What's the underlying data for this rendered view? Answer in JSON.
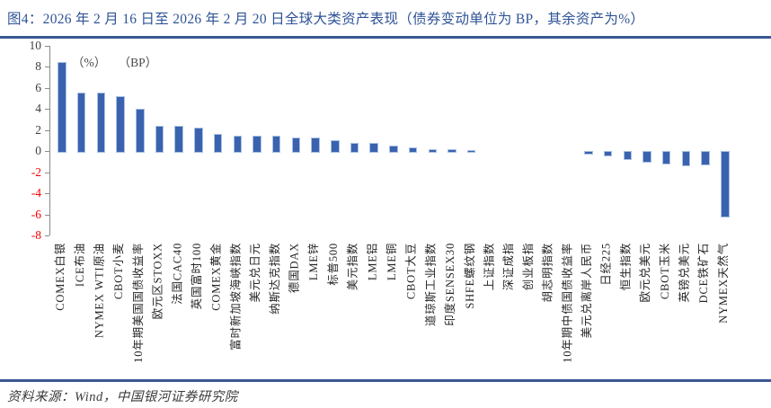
{
  "header": {
    "title": "图4：2026 年 2 月 16 日至 2026 年 2 月 20 日全球大类资产表现（债券变动单位为 BP，其余资产为%）"
  },
  "footer": {
    "source": "资料来源：Wind，中国银河证券研究院"
  },
  "chart_data": {
    "type": "bar",
    "title": "2026 年 2 月 16 日至 2026 年 2 月 20 日全球大类资产表现",
    "unit_label": "（%） （BP）",
    "categories": [
      "COMEX白银",
      "ICE布油",
      "NYMEX WTI原油",
      "CBOT小麦",
      "10年期美国国债收益率",
      "欧元区STOXX",
      "法国CAC40",
      "英国富时100",
      "COMEX黄金",
      "富时新加坡海峡指数",
      "美元兑日元",
      "纳斯达克指数",
      "德国DAX",
      "LME锌",
      "标普500",
      "美元指数",
      "LME铝",
      "LME铜",
      "CBOT大豆",
      "道琼斯工业指数",
      "印度SENSEX30",
      "SHFE螺纹钢",
      "上证指数",
      "深证成指",
      "创业板指",
      "胡志明指数",
      "10年期中债国债收益率",
      "美元兑离岸人民币",
      "日经225",
      "恒生指数",
      "欧元兑美元",
      "CBOT玉米",
      "英镑兑美元",
      "DCE铁矿石",
      "NYMEX天然气"
    ],
    "values": [
      8.5,
      5.6,
      5.6,
      5.2,
      4.0,
      2.4,
      2.4,
      2.2,
      1.6,
      1.5,
      1.45,
      1.45,
      1.3,
      1.3,
      1.0,
      0.8,
      0.75,
      0.5,
      0.35,
      0.2,
      0.15,
      0.05,
      0.0,
      0.0,
      0.0,
      0.0,
      0.0,
      -0.15,
      -0.3,
      -0.65,
      -0.9,
      -1.1,
      -1.25,
      -1.2,
      -6.1
    ],
    "ylim": [
      -8,
      10
    ],
    "yticks": [
      10,
      8,
      6,
      4,
      2,
      0,
      -2,
      -4,
      -6,
      -8
    ],
    "grid": false,
    "legend": "none",
    "colors": {
      "bar_fill": "#3A62AE",
      "bar_border": "#A9C2E2",
      "title_blue": "#2E5396",
      "divider_blue": "#3A5795",
      "tick_positive": "#3f3f3f",
      "tick_negative": "#f40000",
      "axis_line": "#8a8a8a"
    }
  }
}
